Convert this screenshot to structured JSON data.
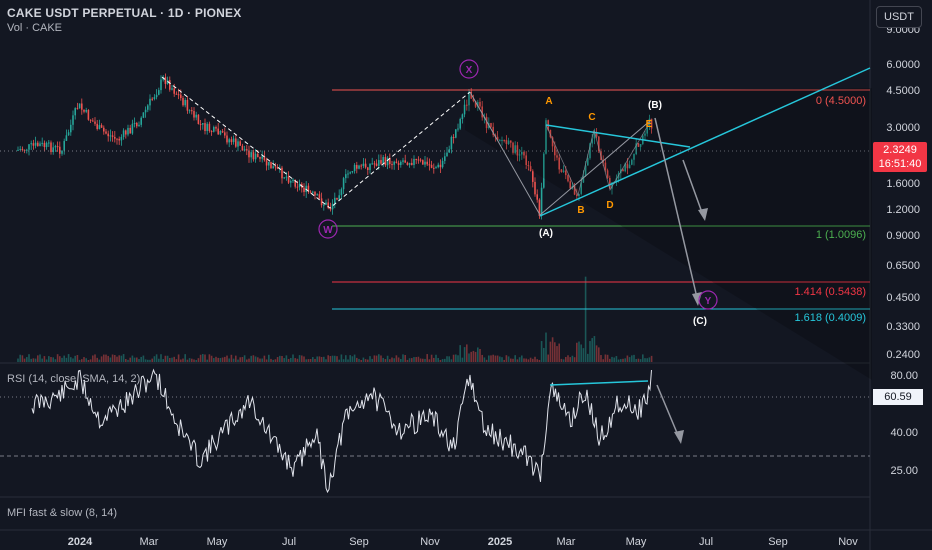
{
  "header": {
    "title": "CAKE USDT PERPETUAL · 1D · PIONEX",
    "volume_label": "Vol · CAKE",
    "currency_button": "USDT"
  },
  "price_axis": {
    "ticks": [
      "9.0000",
      "6.0000",
      "4.5000",
      "3.0000",
      "1.6000",
      "1.2000",
      "0.9000",
      "0.6500",
      "0.4500",
      "0.3300",
      "0.2400"
    ]
  },
  "price_label": {
    "price": "2.3249",
    "countdown": "16:51:40"
  },
  "fib_levels": [
    {
      "label": "0 (4.5000)",
      "color": "#ef5350"
    },
    {
      "label": "1 (1.0096)",
      "color": "#4caf50"
    },
    {
      "label": "1.414 (0.5438)",
      "color": "#f23645"
    },
    {
      "label": "1.618 (0.4009)",
      "color": "#26c6da"
    }
  ],
  "wave_labels": {
    "cycle": [
      "X",
      "W",
      "Y"
    ],
    "primary": [
      "(A)",
      "(B)",
      "(C)"
    ],
    "triangle": [
      "A",
      "B",
      "C",
      "D",
      "E"
    ]
  },
  "rsi": {
    "label": "RSI (14, close, SMA, 14, 2)",
    "value": "60.59",
    "ticks": [
      "80.00",
      "40.00",
      "25.00"
    ]
  },
  "mfi": {
    "label": "MFI fast & slow (8, 14)"
  },
  "time_axis": {
    "ticks": [
      "2024",
      "Mar",
      "May",
      "Jul",
      "Sep",
      "Nov",
      "2025",
      "Mar",
      "May",
      "Jul",
      "Sep",
      "Nov"
    ]
  },
  "colors": {
    "background": "#131722",
    "fib_zero": "#ef5350",
    "fib_one": "#4caf50",
    "fib_1414": "#f23645",
    "fib_1618": "#26c6da",
    "cycle_label": "#9c27b0",
    "triangle_label": "#ff9800",
    "trendline": "#26a0da",
    "current_price": "#f23645"
  }
}
